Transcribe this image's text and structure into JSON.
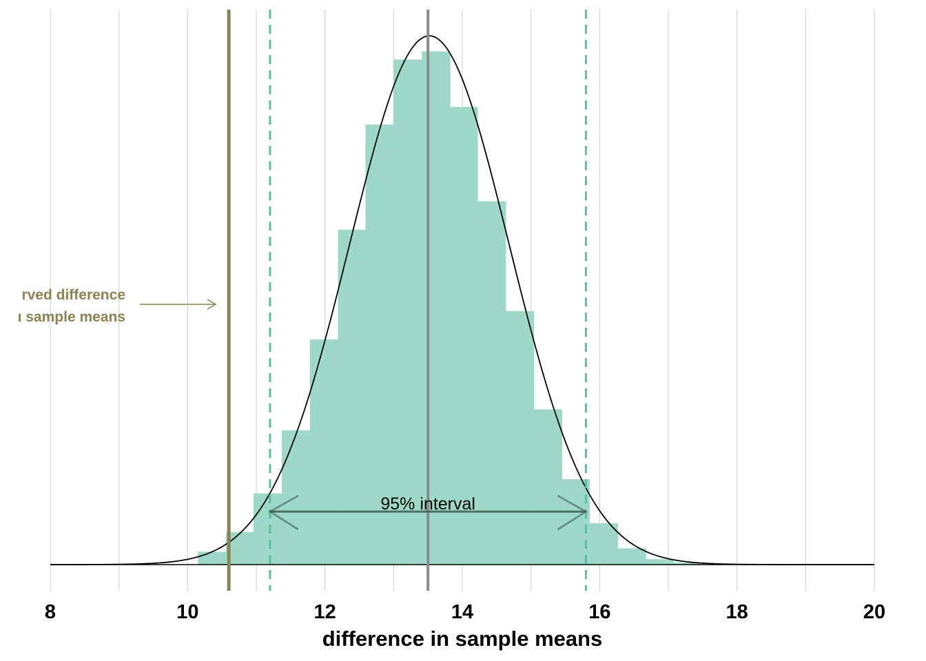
{
  "colors": {
    "bar": "#9dd9c7",
    "observed": "#8b8350",
    "interval": "#5bbf9c",
    "mean": "#8a8a8a",
    "grid": "#cccccc",
    "curve": "#000000",
    "arrow": "#3d5a50"
  },
  "chart_data": {
    "type": "bar",
    "xlabel": "difference in sample means",
    "xlim": [
      8,
      20
    ],
    "x_ticks": [
      "8",
      "10",
      "12",
      "14",
      "16",
      "18",
      "20"
    ],
    "grid": "vertical, every 1 unit",
    "bins": [
      {
        "x0": 10.15,
        "x1": 10.56,
        "count": 19
      },
      {
        "x0": 10.56,
        "x1": 10.96,
        "count": 48
      },
      {
        "x0": 10.96,
        "x1": 11.37,
        "count": 105
      },
      {
        "x0": 11.37,
        "x1": 11.78,
        "count": 198
      },
      {
        "x0": 11.78,
        "x1": 12.19,
        "count": 332
      },
      {
        "x0": 12.19,
        "x1": 12.59,
        "count": 494
      },
      {
        "x0": 12.59,
        "x1": 13.0,
        "count": 649
      },
      {
        "x0": 13.0,
        "x1": 13.41,
        "count": 745
      },
      {
        "x0": 13.41,
        "x1": 13.82,
        "count": 757
      },
      {
        "x0": 13.82,
        "x1": 14.22,
        "count": 675
      },
      {
        "x0": 14.22,
        "x1": 14.63,
        "count": 536
      },
      {
        "x0": 14.63,
        "x1": 15.04,
        "count": 374
      },
      {
        "x0": 15.04,
        "x1": 15.45,
        "count": 229
      },
      {
        "x0": 15.45,
        "x1": 15.85,
        "count": 126
      },
      {
        "x0": 15.85,
        "x1": 16.26,
        "count": 61
      },
      {
        "x0": 16.26,
        "x1": 16.67,
        "count": 24
      },
      {
        "x0": 16.67,
        "x1": 17.07,
        "count": 8
      },
      {
        "x0": 17.07,
        "x1": 17.48,
        "count": 3
      }
    ],
    "density_curve": {
      "mean": 13.52,
      "sd": 1.16,
      "peak_count": 780
    },
    "observed_difference": 10.6,
    "interval_95": [
      11.2,
      15.8
    ],
    "mean_line": 13.5,
    "annotations": {
      "observed_label_line1": "rved difference",
      "observed_label_line2": "ı sample means",
      "interval_label": "95% interval"
    }
  }
}
